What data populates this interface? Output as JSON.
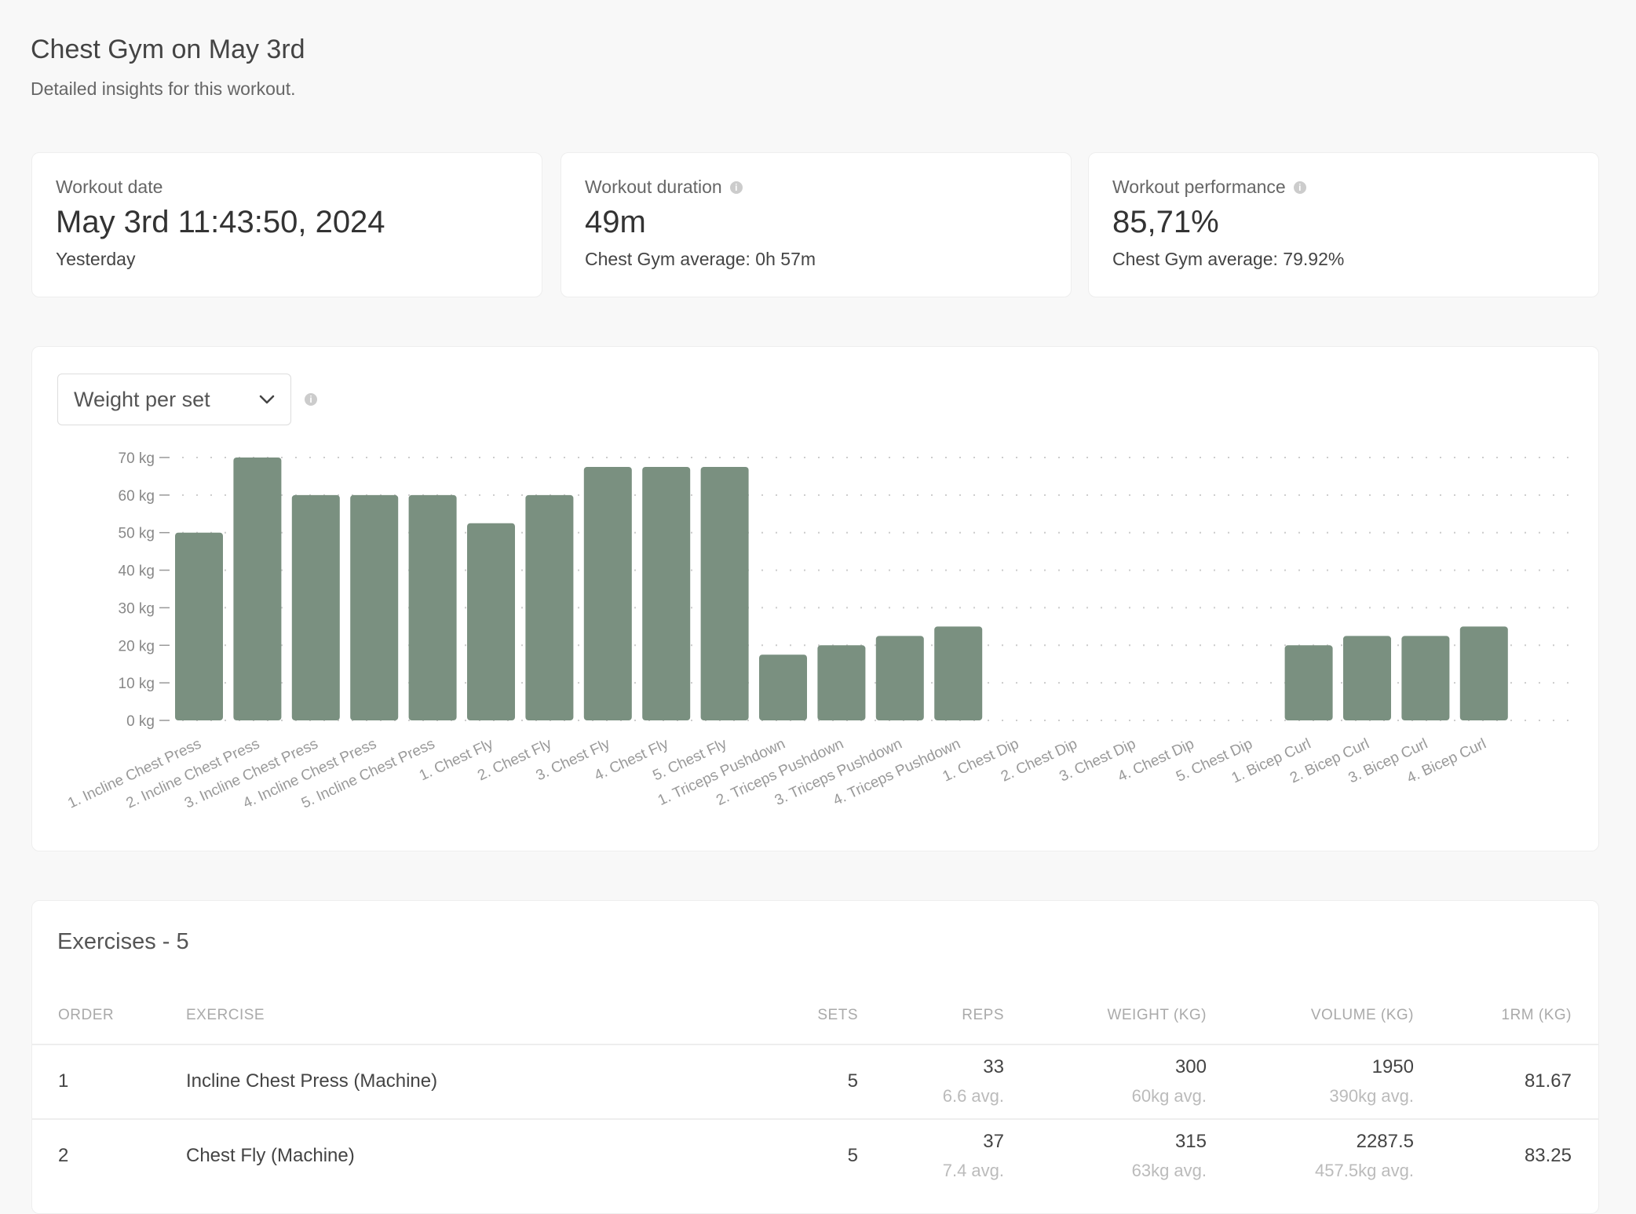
{
  "header": {
    "title": "Chest Gym on May 3rd",
    "subtitle": "Detailed insights for this workout."
  },
  "stats": [
    {
      "label": "Workout date",
      "value": "May 3rd 11:43:50, 2024",
      "sub": "Yesterday",
      "info": false
    },
    {
      "label": "Workout duration",
      "value": "49m",
      "sub": "Chest Gym average: 0h 57m",
      "info": true
    },
    {
      "label": "Workout performance",
      "value": "85,71%",
      "sub": "Chest Gym average: 79.92%",
      "info": true
    }
  ],
  "chart_selector": {
    "selected": "Weight per set"
  },
  "chart_data": {
    "type": "bar",
    "title": "Weight per set",
    "ylim": [
      0,
      70
    ],
    "yticks": [
      "0 kg",
      "10 kg",
      "20 kg",
      "30 kg",
      "40 kg",
      "50 kg",
      "60 kg",
      "70 kg"
    ],
    "ytick_values": [
      0,
      10,
      20,
      30,
      40,
      50,
      60,
      70
    ],
    "grid": true,
    "bar_color": "#7a9080",
    "categories": [
      "1. Incline Chest Press",
      "2. Incline Chest Press",
      "3. Incline Chest Press",
      "4. Incline Chest Press",
      "5. Incline Chest Press",
      "1. Chest Fly",
      "2. Chest Fly",
      "3. Chest Fly",
      "4. Chest Fly",
      "5. Chest Fly",
      "1. Triceps Pushdown",
      "2. Triceps Pushdown",
      "3. Triceps Pushdown",
      "4. Triceps Pushdown",
      "1. Chest Dip",
      "2. Chest Dip",
      "3. Chest Dip",
      "4. Chest Dip",
      "5. Chest Dip",
      "1. Bicep Curl",
      "2. Bicep Curl",
      "3. Bicep Curl",
      "4. Bicep Curl"
    ],
    "values": [
      50,
      70,
      60,
      60,
      60,
      52.5,
      60,
      67.5,
      67.5,
      67.5,
      17.5,
      20,
      22.5,
      25,
      0,
      0,
      0,
      0,
      0,
      20,
      22.5,
      22.5,
      25
    ]
  },
  "exercises": {
    "title": "Exercises - 5",
    "columns": {
      "order": "ORDER",
      "exercise": "EXERCISE",
      "sets": "SETS",
      "reps": "REPS",
      "weight": "WEIGHT (KG)",
      "volume": "VOLUME (KG)",
      "orm": "1RM (KG)"
    },
    "rows": [
      {
        "order": "1",
        "exercise": "Incline Chest Press (Machine)",
        "sets": "5",
        "reps": "33",
        "reps_avg": "6.6 avg.",
        "weight": "300",
        "weight_avg": "60kg avg.",
        "volume": "1950",
        "volume_avg": "390kg avg.",
        "orm": "81.67"
      },
      {
        "order": "2",
        "exercise": "Chest Fly (Machine)",
        "sets": "5",
        "reps": "37",
        "reps_avg": "7.4 avg.",
        "weight": "315",
        "weight_avg": "63kg avg.",
        "volume": "2287.5",
        "volume_avg": "457.5kg avg.",
        "orm": "83.25"
      }
    ]
  }
}
